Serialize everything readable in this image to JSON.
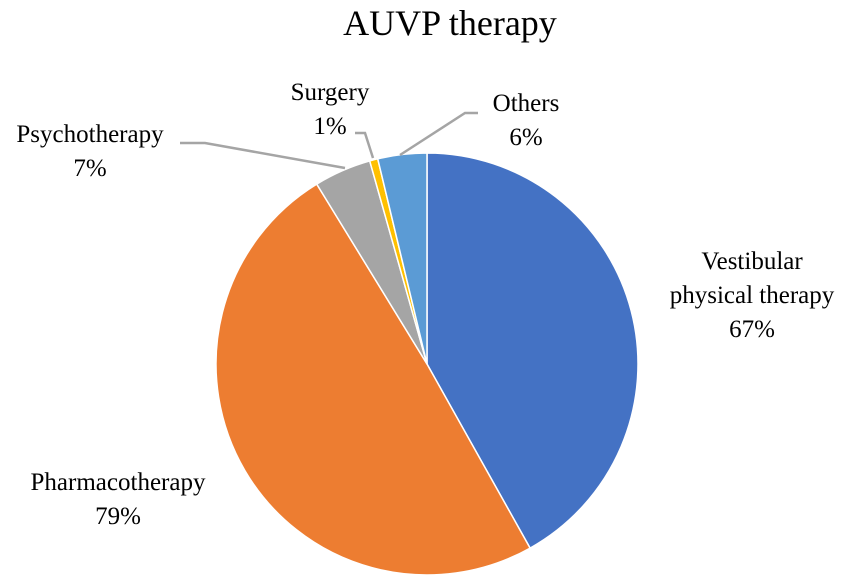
{
  "chart_data": {
    "type": "pie",
    "title": "AUVP therapy",
    "categories": [
      "Vestibular physical therapy",
      "Pharmacotherapy",
      "Psychotherapy",
      "Surgery",
      "Others"
    ],
    "values": [
      67,
      79,
      7,
      1,
      6
    ],
    "value_labels": [
      "67%",
      "79%",
      "7%",
      "1%",
      "6%"
    ],
    "colors": [
      "#4472c4",
      "#ed7d31",
      "#a5a5a5",
      "#ffc000",
      "#5b9bd5"
    ]
  }
}
